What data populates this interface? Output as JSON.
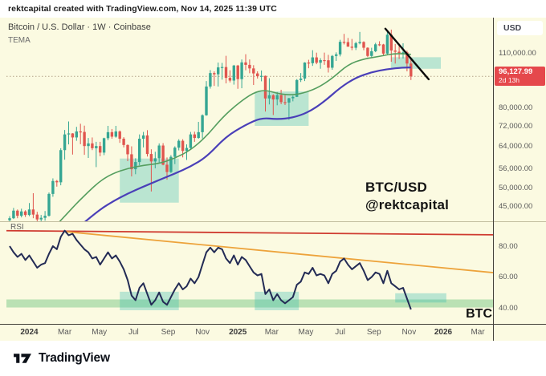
{
  "attribution": "rektcapital created with TradingView.com, Nov 14, 2025 11:39 UTC",
  "legend": {
    "symbol": "Bitcoin / U.S. Dollar · 1W · Coinbase",
    "indicator": "TEMA"
  },
  "watermark": {
    "line1": "BTC/USD",
    "line2": "@rektcapital"
  },
  "price_axis": {
    "currency": "USD",
    "ticks": [
      {
        "label": "110,000.00",
        "value": 110000
      },
      {
        "label": "80,000.00",
        "value": 80000
      },
      {
        "label": "72,000.00",
        "value": 72000
      },
      {
        "label": "64,000.00",
        "value": 64000
      },
      {
        "label": "56,000.00",
        "value": 56000
      },
      {
        "label": "50,000.00",
        "value": 50000
      },
      {
        "label": "45,000.00",
        "value": 45000
      }
    ],
    "last_price": {
      "label": "96,127.99",
      "countdown": "2d 13h",
      "value": 96127.99
    }
  },
  "rsi_panel": {
    "label": "RSI",
    "corner_label": "BTC",
    "ticks": [
      {
        "label": "80.00",
        "value": 80
      },
      {
        "label": "60.00",
        "value": 60
      },
      {
        "label": "40.00",
        "value": 40
      }
    ]
  },
  "time_axis": {
    "labels": [
      {
        "text": "2024",
        "week": 5,
        "bold": true
      },
      {
        "text": "Mar",
        "week": 14,
        "bold": false
      },
      {
        "text": "May",
        "week": 22.8,
        "bold": false
      },
      {
        "text": "Jul",
        "week": 31.5,
        "bold": false
      },
      {
        "text": "Sep",
        "week": 40.3,
        "bold": false
      },
      {
        "text": "Nov",
        "week": 49,
        "bold": false
      },
      {
        "text": "2025",
        "week": 58,
        "bold": true
      },
      {
        "text": "Mar",
        "week": 66.6,
        "bold": false
      },
      {
        "text": "May",
        "week": 75.3,
        "bold": false
      },
      {
        "text": "Jul",
        "week": 84,
        "bold": false
      },
      {
        "text": "Sep",
        "week": 92.6,
        "bold": false
      },
      {
        "text": "Nov",
        "week": 101.5,
        "bold": false
      },
      {
        "text": "2026",
        "week": 110.2,
        "bold": true
      },
      {
        "text": "Mar",
        "week": 119,
        "bold": false
      }
    ]
  },
  "footer": {
    "brand": "TradingView"
  },
  "colors": {
    "background": "#fbfae1",
    "up": "#35a693",
    "down": "#e0554e",
    "box_teal": "rgba(56,189,176,0.33)",
    "band_green": "rgba(96,190,120,0.42)",
    "ma_fast": "#559e5f",
    "ma_slow": "#4a3fb8",
    "rsi_line": "#232b55",
    "trend_red": "#cf3b30",
    "trend_orange": "#eda33b",
    "trend_black": "#0a0a0a",
    "badge_red": "#e5484c",
    "axis_line": "#44413a",
    "panel_divider": "#c2be9f",
    "price_dotted": "#b3a287"
  },
  "chart_data": {
    "type": "candlestick",
    "title": "Bitcoin / U.S. Dollar · 1W · Coinbase",
    "symbol": "BTC/USD",
    "timeframe": "1W",
    "exchange": "Coinbase",
    "price_scale_type": "log",
    "x_unit": "week",
    "start_date": "2023-11-27",
    "last_price": 96127.99,
    "y_axis_ticks": [
      110000,
      80000,
      72000,
      64000,
      56000,
      50000,
      45000
    ],
    "candles": [
      [
        41500,
        42500,
        41000,
        42000
      ],
      [
        42000,
        44600,
        41800,
        43900
      ],
      [
        43900,
        44200,
        42000,
        42600
      ],
      [
        42600,
        44400,
        42200,
        43700
      ],
      [
        43700,
        44000,
        42300,
        42800
      ],
      [
        42800,
        45900,
        42500,
        44200
      ],
      [
        44200,
        48600,
        42000,
        42900
      ],
      [
        42900,
        43600,
        40800,
        41700
      ],
      [
        41700,
        42800,
        40600,
        42100
      ],
      [
        42100,
        43800,
        41400,
        42600
      ],
      [
        42600,
        48800,
        42400,
        48400
      ],
      [
        48400,
        53000,
        47600,
        52200
      ],
      [
        52200,
        52500,
        50500,
        51800
      ],
      [
        51800,
        63200,
        50900,
        62500
      ],
      [
        62500,
        70300,
        59100,
        68500
      ],
      [
        68500,
        73900,
        64600,
        68900
      ],
      [
        68900,
        69000,
        60900,
        67300
      ],
      [
        67300,
        71600,
        66000,
        69700
      ],
      [
        69700,
        72900,
        64700,
        69500
      ],
      [
        69500,
        72100,
        60800,
        64000
      ],
      [
        64000,
        67100,
        59700,
        65000
      ],
      [
        65000,
        67300,
        62500,
        63200
      ],
      [
        63200,
        65600,
        56600,
        64000
      ],
      [
        64000,
        65600,
        60300,
        61600
      ],
      [
        61600,
        67200,
        60700,
        67000
      ],
      [
        67000,
        72000,
        66200,
        69400
      ],
      [
        69400,
        70700,
        66800,
        67600
      ],
      [
        67600,
        72000,
        67200,
        69700
      ],
      [
        69700,
        70100,
        65200,
        66800
      ],
      [
        66800,
        67400,
        63500,
        64400
      ],
      [
        64400,
        64600,
        58600,
        61000
      ],
      [
        61000,
        63900,
        53600,
        55900
      ],
      [
        55900,
        59600,
        54300,
        58300
      ],
      [
        58300,
        68500,
        57200,
        66800
      ],
      [
        66800,
        69500,
        63500,
        68100
      ],
      [
        68100,
        70200,
        60200,
        61100
      ],
      [
        61100,
        62800,
        49100,
        58500
      ],
      [
        58500,
        61900,
        56200,
        59600
      ],
      [
        59600,
        65000,
        57900,
        64200
      ],
      [
        64200,
        65100,
        57200,
        57400
      ],
      [
        57400,
        59900,
        52600,
        55000
      ],
      [
        55000,
        60700,
        54700,
        60100
      ],
      [
        60100,
        63900,
        57600,
        63400
      ],
      [
        63400,
        66600,
        62400,
        66000
      ],
      [
        66000,
        66600,
        59900,
        62200
      ],
      [
        62200,
        64600,
        59000,
        63300
      ],
      [
        63300,
        69500,
        62600,
        68500
      ],
      [
        68500,
        69600,
        65600,
        67100
      ],
      [
        67100,
        73700,
        66800,
        69400
      ],
      [
        69400,
        77000,
        66900,
        76600
      ],
      [
        76600,
        93500,
        76400,
        90600
      ],
      [
        90600,
        99700,
        89500,
        98000
      ],
      [
        98000,
        99000,
        90900,
        97300
      ],
      [
        97300,
        104200,
        90600,
        101300
      ],
      [
        101300,
        104000,
        94300,
        101500
      ],
      [
        101500,
        108400,
        92300,
        95300
      ],
      [
        95300,
        99600,
        92800,
        93800
      ],
      [
        93800,
        102800,
        91600,
        102400
      ],
      [
        102400,
        102800,
        89400,
        94600
      ],
      [
        94600,
        106100,
        89700,
        104300
      ],
      [
        104300,
        109400,
        99600,
        102800
      ],
      [
        102800,
        106100,
        97900,
        100700
      ],
      [
        100700,
        102600,
        91400,
        97800
      ],
      [
        97800,
        99000,
        94900,
        96200
      ],
      [
        96200,
        99500,
        93400,
        96400
      ],
      [
        96400,
        96600,
        78300,
        84500
      ],
      [
        84500,
        95100,
        81600,
        86100
      ],
      [
        86100,
        86600,
        76700,
        84000
      ],
      [
        84000,
        87700,
        81200,
        86200
      ],
      [
        86200,
        88900,
        81700,
        82700
      ],
      [
        82700,
        86100,
        81300,
        82500
      ],
      [
        82500,
        84800,
        74600,
        84600
      ],
      [
        84600,
        85900,
        83100,
        85300
      ],
      [
        85300,
        94600,
        85200,
        94100
      ],
      [
        94100,
        98000,
        93000,
        94900
      ],
      [
        94900,
        104400,
        93500,
        104200
      ],
      [
        104200,
        105900,
        100800,
        103800
      ],
      [
        103800,
        112000,
        102200,
        107400
      ],
      [
        107400,
        110400,
        103200,
        104100
      ],
      [
        104100,
        106900,
        100500,
        105700
      ],
      [
        105700,
        110400,
        102800,
        105600
      ],
      [
        105600,
        109000,
        98300,
        101100
      ],
      [
        101100,
        108900,
        99900,
        108300
      ],
      [
        108300,
        110600,
        105200,
        109300
      ],
      [
        109300,
        119000,
        108000,
        117600
      ],
      [
        117600,
        123200,
        115800,
        117400
      ],
      [
        117400,
        120300,
        114600,
        114300
      ],
      [
        114300,
        119600,
        112000,
        113600
      ],
      [
        113600,
        117600,
        112100,
        116700
      ],
      [
        116700,
        124600,
        115900,
        117500
      ],
      [
        117500,
        118000,
        112000,
        113600
      ],
      [
        113600,
        113900,
        107500,
        108300
      ],
      [
        108300,
        113600,
        107400,
        111300
      ],
      [
        111300,
        116900,
        110700,
        115900
      ],
      [
        115900,
        118000,
        114700,
        115800
      ],
      [
        115800,
        116200,
        108800,
        109800
      ],
      [
        109800,
        124800,
        108900,
        122600
      ],
      [
        122600,
        126300,
        104700,
        111800
      ],
      [
        111800,
        116100,
        103600,
        111000
      ],
      [
        111000,
        116200,
        106400,
        110200
      ],
      [
        110200,
        116600,
        106700,
        110600
      ],
      [
        110600,
        111700,
        99000,
        103600
      ],
      [
        103600,
        107300,
        94100,
        96100
      ]
    ],
    "ma_fast": {
      "name": "TEMA (fast)",
      "points": [
        [
          11,
          39500
        ],
        [
          14,
          42500
        ],
        [
          17,
          45800
        ],
        [
          20,
          49000
        ],
        [
          23,
          52200
        ],
        [
          26,
          54400
        ],
        [
          30,
          56200
        ],
        [
          34,
          57200
        ],
        [
          38,
          57800
        ],
        [
          42,
          59600
        ],
        [
          46,
          62500
        ],
        [
          50,
          67700
        ],
        [
          54,
          75500
        ],
        [
          58,
          82000
        ],
        [
          62,
          87500
        ],
        [
          65,
          88800
        ],
        [
          68,
          87000
        ],
        [
          71,
          86200
        ],
        [
          74,
          86800
        ],
        [
          78,
          89500
        ],
        [
          82,
          95000
        ],
        [
          86,
          103000
        ],
        [
          90,
          106500
        ],
        [
          94,
          108000
        ],
        [
          98,
          110000
        ],
        [
          102,
          109300
        ]
      ]
    },
    "ma_slow": {
      "name": "Slow MA",
      "points": [
        [
          18,
          40200
        ],
        [
          22,
          43500
        ],
        [
          26,
          46200
        ],
        [
          30,
          48500
        ],
        [
          34,
          50500
        ],
        [
          38,
          52500
        ],
        [
          42,
          54500
        ],
        [
          46,
          56800
        ],
        [
          50,
          60000
        ],
        [
          55,
          67700
        ],
        [
          60,
          72500
        ],
        [
          64,
          75500
        ],
        [
          68,
          74800
        ],
        [
          72,
          75500
        ],
        [
          76,
          78000
        ],
        [
          80,
          83000
        ],
        [
          84,
          90000
        ],
        [
          88,
          95500
        ],
        [
          92,
          98500
        ],
        [
          96,
          100300
        ],
        [
          100,
          101200
        ],
        [
          102,
          101300
        ]
      ]
    },
    "price_boxes": [
      {
        "w1": 28,
        "w2": 43,
        "p1": 46000,
        "p2": 59500
      },
      {
        "w1": 62.3,
        "w2": 76,
        "p1": 72000,
        "p2": 88000
      },
      {
        "w1": 96.9,
        "w2": 109.6,
        "p1": 100500,
        "p2": 107500
      }
    ],
    "trendline": {
      "from": [
        95.5,
        127000
      ],
      "to": [
        106.5,
        94500
      ]
    },
    "rsi": {
      "label": "RSI",
      "ticks": [
        80,
        60,
        40
      ],
      "values": [
        80,
        76,
        73,
        75,
        71,
        74,
        70,
        66,
        68,
        69,
        75,
        80,
        78,
        86,
        90,
        87,
        88,
        84,
        81,
        78,
        76,
        72,
        73,
        68,
        72,
        76,
        72,
        74,
        70,
        65,
        58,
        48,
        45,
        53,
        56,
        49,
        42,
        45,
        50,
        44,
        42,
        47,
        52,
        56,
        52,
        54,
        59,
        56,
        60,
        68,
        76,
        79,
        76,
        79,
        78,
        72,
        69,
        74,
        68,
        73,
        71,
        67,
        63,
        61,
        62,
        49,
        52,
        45,
        49,
        45,
        43,
        45,
        47,
        55,
        57,
        63,
        62,
        66,
        61,
        62,
        61,
        56,
        62,
        64,
        70,
        72,
        68,
        65,
        67,
        69,
        64,
        58,
        60,
        63,
        62,
        56,
        64,
        56,
        54,
        52,
        53,
        46,
        39
      ]
    },
    "rsi_resistance_line": {
      "from": [
        -1,
        90
      ],
      "to": [
        124,
        87.3
      ]
    },
    "rsi_falling_line": {
      "from": [
        14.5,
        89.3
      ],
      "to": [
        123,
        62.8
      ]
    },
    "rsi_support_band": {
      "low": 40.3,
      "high": 45.5
    },
    "rsi_boxes": [
      {
        "w1": 28,
        "w2": 43,
        "v1": 38.5,
        "v2": 50.5
      },
      {
        "w1": 62.3,
        "w2": 73.5,
        "v1": 38.5,
        "v2": 50.5
      },
      {
        "w1": 98,
        "w2": 111,
        "v1": 43.5,
        "v2": 49.5
      }
    ]
  }
}
